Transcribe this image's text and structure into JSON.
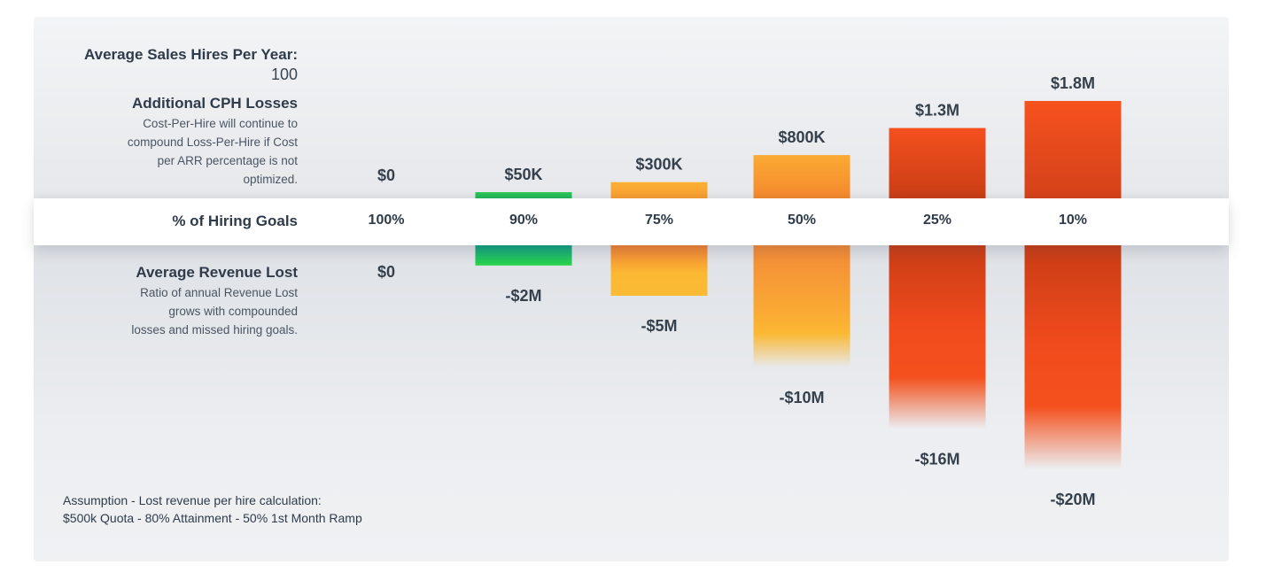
{
  "inputs": {
    "hires_label": "Average Sales Hires Per Year:",
    "hires_value": "100"
  },
  "cph_section": {
    "title": "Additional CPH Losses",
    "description_lines": [
      "Cost-Per-Hire will continue to",
      "compound Loss-Per-Hire if Cost",
      "per ARR percentage is not",
      "optimized."
    ]
  },
  "revenue_section": {
    "title": "Average Revenue Lost",
    "description_lines": [
      "Ratio of annual Revenue Lost",
      "grows with compounded",
      "losses and missed hiring goals."
    ]
  },
  "goals_row_label": "% of Hiring Goals",
  "assumption": {
    "line1": "Assumption - Lost revenue per hire calculation:",
    "line2": "$500k Quota - 80% Attainment - 50% 1st Month Ramp"
  },
  "chart_data": {
    "type": "bar",
    "categories": [
      "100%",
      "90%",
      "75%",
      "50%",
      "25%",
      "10%"
    ],
    "series": [
      {
        "values": [
          0,
          50000,
          300000,
          800000,
          1300000,
          1800000
        ],
        "labels": [
          "$0",
          "$50K",
          "$300K",
          "$800K",
          "$1.3M",
          "$1.8M"
        ]
      },
      {
        "values": [
          0,
          -2000000,
          -5000000,
          -10000000,
          -16000000,
          -20000000
        ],
        "labels": [
          "$0",
          "-$2M",
          "-$5M",
          "-$10M",
          "-$16M",
          "-$20M"
        ]
      }
    ],
    "colors": {
      "green_top": "#0f9f86",
      "green_bottom": "#2ad64a",
      "yellow": "#fbb833",
      "orange": "#f58b33",
      "red_orange": "#f4511e",
      "dark_red": "#cc3d17"
    }
  }
}
